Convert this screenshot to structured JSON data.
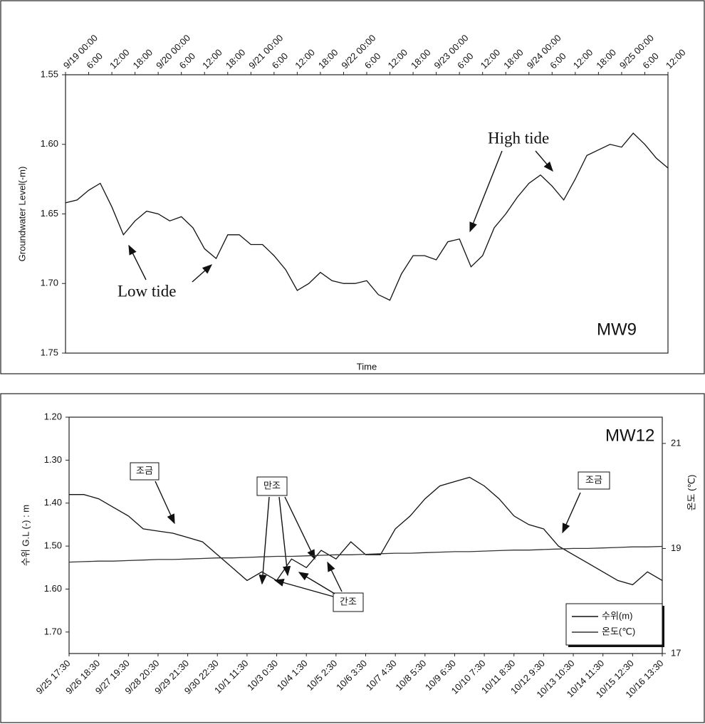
{
  "chart_data": [
    {
      "type": "line",
      "xlabel": "Time",
      "ylabel": "Groundwater Level(-m)",
      "x_tick_position": "top",
      "y_inverted": true,
      "categories": [
        "9/19 00:00",
        null,
        "6:00",
        null,
        "12:00",
        null,
        "18:00",
        null,
        "9/20 00:00",
        null,
        "6:00",
        null,
        "12:00",
        null,
        "18:00",
        null,
        "9/21 00:00",
        null,
        "6:00",
        null,
        "12:00",
        null,
        "18:00",
        null,
        "9/22 00:00",
        null,
        "6:00",
        null,
        "12:00",
        null,
        "18:00",
        null,
        "9/23 00:00",
        null,
        "6:00",
        null,
        "12:00",
        null,
        "18:00",
        null,
        "9/24 00:00",
        null,
        "6:00",
        null,
        "12:00",
        null,
        "18:00",
        null,
        "9/25 00:00",
        null,
        "6:00",
        null,
        "12:00"
      ],
      "series": [
        {
          "color": "#111111",
          "values": [
            1.642,
            1.64,
            1.633,
            1.628,
            1.645,
            1.665,
            1.655,
            1.648,
            1.65,
            1.655,
            1.652,
            1.66,
            1.675,
            1.682,
            1.665,
            1.665,
            1.672,
            1.672,
            1.68,
            1.69,
            1.705,
            1.7,
            1.692,
            1.698,
            1.7,
            1.7,
            1.698,
            1.708,
            1.712,
            1.693,
            1.68,
            1.68,
            1.683,
            1.67,
            1.668,
            1.688,
            1.68,
            1.66,
            1.65,
            1.638,
            1.628,
            1.622,
            1.63,
            1.64,
            1.625,
            1.608,
            1.604,
            1.6,
            1.602,
            1.592,
            1.6,
            1.61,
            1.617
          ]
        }
      ],
      "ylim": [
        1.55,
        1.75
      ],
      "yticks": [
        1.55,
        {
          "value": 1.6,
          "label": "1.60"
        },
        1.65,
        {
          "value": 1.7,
          "label": "1.70"
        },
        1.75
      ],
      "annotations": [
        "Low  tide",
        "High  tide",
        "MW9"
      ]
    },
    {
      "type": "line",
      "ylabel": "수위 G.L (-) : m",
      "y2label": "온도 (℃)",
      "x_tick_position": "bottom",
      "y_inverted": true,
      "legend": "lower right",
      "categories": [
        "9/25 17:30",
        null,
        "9/26 18:30",
        null,
        "9/27 19:30",
        null,
        "9/28 20:30",
        null,
        "9/29 21:30",
        null,
        "9/30 22:30",
        null,
        "10/1 11:30",
        null,
        "10/3 0:30",
        null,
        "10/4 1:30",
        null,
        "10/5 2:30",
        null,
        "10/6 3:30",
        null,
        "10/7 4:30",
        null,
        "10/8 5:30",
        null,
        "10/9 6:30",
        null,
        "10/10 7:30",
        null,
        "10/11 8:30",
        null,
        "10/12 9:30",
        null,
        "10/13 10:30",
        null,
        "10/14 11:30",
        null,
        "10/15 12:30",
        null,
        "10/16 13:30"
      ],
      "series": [
        {
          "name": "수위(m)",
          "color": "#111111",
          "values": [
            1.38,
            1.38,
            1.39,
            1.41,
            1.43,
            1.46,
            1.465,
            1.47,
            1.48,
            1.49,
            1.52,
            1.55,
            1.58,
            1.56,
            1.58,
            1.53,
            1.55,
            1.51,
            1.53,
            1.49,
            1.52,
            1.52,
            1.46,
            1.43,
            1.39,
            1.36,
            1.35,
            1.34,
            1.36,
            1.39,
            1.43,
            1.45,
            1.46,
            1.5,
            1.52,
            1.54,
            1.56,
            1.58,
            1.59,
            1.56,
            1.58
          ]
        },
        {
          "name": "온도(℃)",
          "color": "#333333",
          "axis": "y2",
          "values": [
            18.74,
            18.75,
            18.76,
            18.76,
            18.77,
            18.78,
            18.79,
            18.79,
            18.8,
            18.81,
            18.82,
            18.82,
            18.83,
            18.84,
            18.85,
            18.85,
            18.86,
            18.87,
            18.88,
            18.88,
            18.89,
            18.9,
            18.91,
            18.91,
            18.92,
            18.93,
            18.94,
            18.94,
            18.95,
            18.96,
            18.97,
            18.97,
            18.98,
            18.99,
            19.0,
            19.0,
            19.01,
            19.02,
            19.03,
            19.03,
            19.04
          ]
        }
      ],
      "ylim": [
        1.2,
        1.75
      ],
      "yticks": [
        {
          "value": 1.2,
          "label": "1.20"
        },
        {
          "value": 1.3,
          "label": "1.30"
        },
        {
          "value": 1.4,
          "label": "1.40"
        },
        {
          "value": 1.5,
          "label": "1.50"
        },
        {
          "value": 1.6,
          "label": "1.60"
        },
        {
          "value": 1.7,
          "label": "1.70"
        }
      ],
      "y2lim": [
        17,
        21.5
      ],
      "y2ticks": [
        17,
        19,
        21
      ],
      "annotations": [
        "MW12",
        "조금",
        "만조",
        "간조",
        "조금"
      ]
    }
  ]
}
